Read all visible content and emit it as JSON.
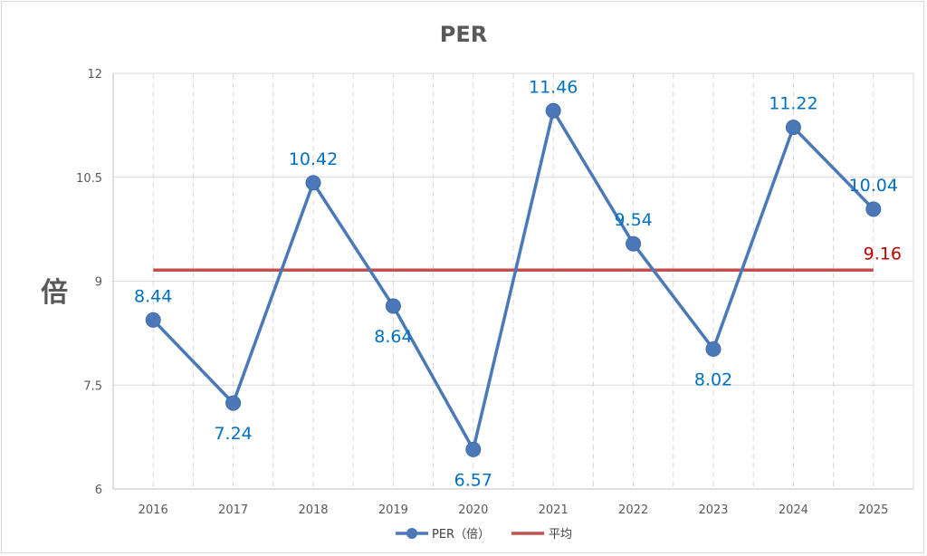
{
  "chart_data": {
    "type": "line",
    "title": "PER",
    "ylabel": "倍",
    "xlabel": "",
    "categories": [
      "2016",
      "2017",
      "2018",
      "2019",
      "2020",
      "2021",
      "2022",
      "2023",
      "2024",
      "2025"
    ],
    "ylim": [
      6,
      12
    ],
    "yticks": [
      6,
      7.5,
      9,
      10.5,
      12
    ],
    "ytick_labels": [
      "6",
      "7.5",
      "9",
      "10.5",
      "12"
    ],
    "grid": true,
    "legend_position": "bottom",
    "series": [
      {
        "name": "PER（倍）",
        "values": [
          8.44,
          7.24,
          10.42,
          8.64,
          6.57,
          11.46,
          9.54,
          8.02,
          11.22,
          10.04
        ],
        "labels": [
          "8.44",
          "7.24",
          "10.42",
          "8.64",
          "6.57",
          "11.46",
          "9.54",
          "8.02",
          "11.22",
          "10.04"
        ],
        "color": "#4a78b8",
        "label_color": "#0070c0",
        "marker": "circle"
      },
      {
        "name": "平均",
        "values": [
          9.16,
          9.16,
          9.16,
          9.16,
          9.16,
          9.16,
          9.16,
          9.16,
          9.16,
          9.16
        ],
        "label": "9.16",
        "color": "#c0504d",
        "label_color": "#c00000"
      }
    ]
  }
}
